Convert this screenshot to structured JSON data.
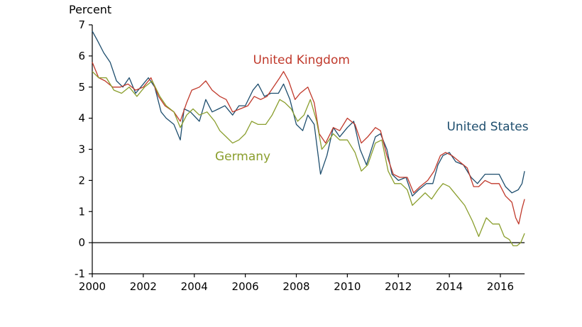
{
  "chart_data": {
    "type": "line",
    "title": "",
    "ylabel": "Percent",
    "xlabel": "",
    "xlim": [
      2000,
      2016.95
    ],
    "ylim": [
      -1,
      7
    ],
    "x_ticks": [
      2000,
      2002,
      2004,
      2006,
      2008,
      2010,
      2012,
      2014,
      2016
    ],
    "y_ticks": [
      -1,
      0,
      1,
      2,
      3,
      4,
      5,
      6,
      7
    ],
    "zero_line": true,
    "grid": false,
    "legend": "direct-labels",
    "series": [
      {
        "name": "United States",
        "color": "#1e4e6e",
        "label_at": [
          2015.5,
          3.6
        ],
        "points": [
          [
            2000.0,
            6.8
          ],
          [
            2000.2,
            6.5
          ],
          [
            2000.45,
            6.1
          ],
          [
            2000.7,
            5.8
          ],
          [
            2000.95,
            5.2
          ],
          [
            2001.2,
            5.0
          ],
          [
            2001.45,
            5.3
          ],
          [
            2001.7,
            4.8
          ],
          [
            2002.0,
            5.1
          ],
          [
            2002.2,
            5.3
          ],
          [
            2002.45,
            5.0
          ],
          [
            2002.7,
            4.2
          ],
          [
            2002.9,
            4.0
          ],
          [
            2003.2,
            3.8
          ],
          [
            2003.45,
            3.3
          ],
          [
            2003.6,
            4.3
          ],
          [
            2003.85,
            4.2
          ],
          [
            2004.2,
            3.9
          ],
          [
            2004.45,
            4.6
          ],
          [
            2004.7,
            4.2
          ],
          [
            2004.95,
            4.3
          ],
          [
            2005.2,
            4.4
          ],
          [
            2005.5,
            4.1
          ],
          [
            2005.75,
            4.4
          ],
          [
            2006.0,
            4.4
          ],
          [
            2006.3,
            4.9
          ],
          [
            2006.5,
            5.1
          ],
          [
            2006.75,
            4.7
          ],
          [
            2007.0,
            4.8
          ],
          [
            2007.3,
            4.8
          ],
          [
            2007.5,
            5.1
          ],
          [
            2007.75,
            4.6
          ],
          [
            2008.0,
            3.8
          ],
          [
            2008.25,
            3.6
          ],
          [
            2008.45,
            4.1
          ],
          [
            2008.7,
            3.8
          ],
          [
            2008.95,
            2.2
          ],
          [
            2009.2,
            2.8
          ],
          [
            2009.45,
            3.7
          ],
          [
            2009.7,
            3.4
          ],
          [
            2010.0,
            3.7
          ],
          [
            2010.25,
            3.9
          ],
          [
            2010.5,
            3.0
          ],
          [
            2010.75,
            2.5
          ],
          [
            2011.1,
            3.4
          ],
          [
            2011.3,
            3.5
          ],
          [
            2011.55,
            3.0
          ],
          [
            2011.75,
            2.2
          ],
          [
            2012.0,
            2.0
          ],
          [
            2012.3,
            2.1
          ],
          [
            2012.55,
            1.5
          ],
          [
            2012.8,
            1.7
          ],
          [
            2013.1,
            1.9
          ],
          [
            2013.35,
            1.9
          ],
          [
            2013.55,
            2.5
          ],
          [
            2013.75,
            2.8
          ],
          [
            2014.0,
            2.9
          ],
          [
            2014.25,
            2.6
          ],
          [
            2014.55,
            2.5
          ],
          [
            2014.85,
            2.1
          ],
          [
            2015.1,
            1.9
          ],
          [
            2015.4,
            2.2
          ],
          [
            2015.7,
            2.2
          ],
          [
            2015.95,
            2.2
          ],
          [
            2016.2,
            1.8
          ],
          [
            2016.45,
            1.6
          ],
          [
            2016.7,
            1.7
          ],
          [
            2016.85,
            1.9
          ],
          [
            2016.95,
            2.3
          ]
        ]
      },
      {
        "name": "United Kingdom",
        "color": "#c0392b",
        "label_at": [
          2008.2,
          5.75
        ],
        "points": [
          [
            2000.0,
            5.8
          ],
          [
            2000.25,
            5.3
          ],
          [
            2000.5,
            5.2
          ],
          [
            2000.8,
            5.0
          ],
          [
            2001.1,
            5.0
          ],
          [
            2001.4,
            5.1
          ],
          [
            2001.7,
            4.9
          ],
          [
            2002.0,
            5.0
          ],
          [
            2002.3,
            5.3
          ],
          [
            2002.6,
            4.7
          ],
          [
            2002.85,
            4.4
          ],
          [
            2003.2,
            4.2
          ],
          [
            2003.45,
            3.9
          ],
          [
            2003.7,
            4.5
          ],
          [
            2003.9,
            4.9
          ],
          [
            2004.2,
            5.0
          ],
          [
            2004.45,
            5.2
          ],
          [
            2004.7,
            4.9
          ],
          [
            2005.0,
            4.7
          ],
          [
            2005.25,
            4.6
          ],
          [
            2005.5,
            4.2
          ],
          [
            2005.8,
            4.3
          ],
          [
            2006.1,
            4.4
          ],
          [
            2006.35,
            4.7
          ],
          [
            2006.6,
            4.6
          ],
          [
            2006.85,
            4.7
          ],
          [
            2007.1,
            5.0
          ],
          [
            2007.35,
            5.3
          ],
          [
            2007.5,
            5.5
          ],
          [
            2007.7,
            5.2
          ],
          [
            2007.95,
            4.6
          ],
          [
            2008.15,
            4.8
          ],
          [
            2008.45,
            5.0
          ],
          [
            2008.7,
            4.5
          ],
          [
            2008.9,
            3.5
          ],
          [
            2009.15,
            3.2
          ],
          [
            2009.45,
            3.7
          ],
          [
            2009.7,
            3.6
          ],
          [
            2010.0,
            4.0
          ],
          [
            2010.3,
            3.8
          ],
          [
            2010.55,
            3.2
          ],
          [
            2010.8,
            3.4
          ],
          [
            2011.1,
            3.7
          ],
          [
            2011.3,
            3.6
          ],
          [
            2011.55,
            2.8
          ],
          [
            2011.8,
            2.2
          ],
          [
            2012.05,
            2.1
          ],
          [
            2012.35,
            2.1
          ],
          [
            2012.6,
            1.6
          ],
          [
            2012.85,
            1.8
          ],
          [
            2013.15,
            2.0
          ],
          [
            2013.4,
            2.3
          ],
          [
            2013.65,
            2.8
          ],
          [
            2013.85,
            2.9
          ],
          [
            2014.1,
            2.8
          ],
          [
            2014.4,
            2.6
          ],
          [
            2014.7,
            2.4
          ],
          [
            2014.95,
            1.8
          ],
          [
            2015.15,
            1.8
          ],
          [
            2015.4,
            2.0
          ],
          [
            2015.65,
            1.9
          ],
          [
            2015.95,
            1.9
          ],
          [
            2016.2,
            1.5
          ],
          [
            2016.45,
            1.3
          ],
          [
            2016.6,
            0.8
          ],
          [
            2016.72,
            0.6
          ],
          [
            2016.85,
            1.1
          ],
          [
            2016.95,
            1.4
          ]
        ]
      },
      {
        "name": "Germany",
        "color": "#8a9e2d",
        "label_at": [
          2005.9,
          2.65
        ],
        "points": [
          [
            2000.0,
            5.5
          ],
          [
            2000.25,
            5.3
          ],
          [
            2000.55,
            5.3
          ],
          [
            2000.85,
            4.9
          ],
          [
            2001.15,
            4.8
          ],
          [
            2001.45,
            5.0
          ],
          [
            2001.75,
            4.7
          ],
          [
            2002.05,
            5.0
          ],
          [
            2002.35,
            5.2
          ],
          [
            2002.65,
            4.7
          ],
          [
            2002.9,
            4.4
          ],
          [
            2003.2,
            4.2
          ],
          [
            2003.45,
            3.7
          ],
          [
            2003.7,
            4.1
          ],
          [
            2003.95,
            4.3
          ],
          [
            2004.2,
            4.1
          ],
          [
            2004.5,
            4.2
          ],
          [
            2004.8,
            3.9
          ],
          [
            2005.0,
            3.6
          ],
          [
            2005.25,
            3.4
          ],
          [
            2005.5,
            3.2
          ],
          [
            2005.75,
            3.3
          ],
          [
            2006.0,
            3.5
          ],
          [
            2006.25,
            3.9
          ],
          [
            2006.5,
            3.8
          ],
          [
            2006.8,
            3.8
          ],
          [
            2007.05,
            4.1
          ],
          [
            2007.35,
            4.6
          ],
          [
            2007.55,
            4.5
          ],
          [
            2007.8,
            4.3
          ],
          [
            2008.05,
            3.9
          ],
          [
            2008.3,
            4.1
          ],
          [
            2008.55,
            4.6
          ],
          [
            2008.8,
            3.9
          ],
          [
            2009.0,
            3.0
          ],
          [
            2009.2,
            3.2
          ],
          [
            2009.45,
            3.5
          ],
          [
            2009.7,
            3.3
          ],
          [
            2010.0,
            3.3
          ],
          [
            2010.3,
            2.9
          ],
          [
            2010.55,
            2.3
          ],
          [
            2010.8,
            2.5
          ],
          [
            2011.1,
            3.2
          ],
          [
            2011.35,
            3.3
          ],
          [
            2011.6,
            2.3
          ],
          [
            2011.85,
            1.9
          ],
          [
            2012.1,
            1.9
          ],
          [
            2012.35,
            1.7
          ],
          [
            2012.55,
            1.2
          ],
          [
            2012.8,
            1.4
          ],
          [
            2013.05,
            1.6
          ],
          [
            2013.3,
            1.4
          ],
          [
            2013.55,
            1.7
          ],
          [
            2013.75,
            1.9
          ],
          [
            2014.0,
            1.8
          ],
          [
            2014.3,
            1.5
          ],
          [
            2014.6,
            1.2
          ],
          [
            2014.9,
            0.7
          ],
          [
            2015.15,
            0.2
          ],
          [
            2015.3,
            0.5
          ],
          [
            2015.45,
            0.8
          ],
          [
            2015.7,
            0.6
          ],
          [
            2015.95,
            0.6
          ],
          [
            2016.15,
            0.2
          ],
          [
            2016.35,
            0.1
          ],
          [
            2016.5,
            -0.1
          ],
          [
            2016.65,
            -0.1
          ],
          [
            2016.8,
            0.0
          ],
          [
            2016.95,
            0.3
          ]
        ]
      }
    ]
  }
}
